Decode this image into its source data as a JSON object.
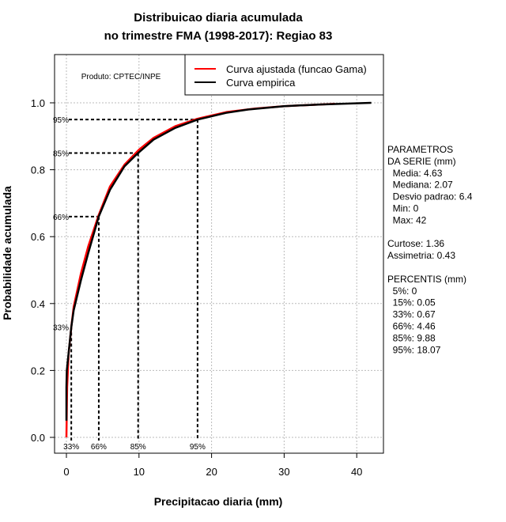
{
  "chart_data": {
    "type": "line",
    "title": [
      "Distribuicao diaria acumulada",
      "no trimestre FMA (1998-2017): Regiao 83"
    ],
    "xlabel": "Precipitacao diaria (mm)",
    "ylabel": "Probabilidade acumulada",
    "xlim": [
      -2,
      43
    ],
    "ylim": [
      -0.04,
      1.13
    ],
    "xticks": [
      0,
      10,
      20,
      30,
      40
    ],
    "yticks": [
      "0.0",
      "0.2",
      "0.4",
      "0.6",
      "0.8",
      "1.0"
    ],
    "grid": true,
    "legend_position": "top-right",
    "product_note": "Produto: CPTEC/INPE",
    "series": [
      {
        "name": "Curva ajustada (funcao Gama)",
        "color": "#ff0000",
        "x": [
          0,
          0.1,
          0.3,
          0.67,
          1,
          2,
          3,
          4.46,
          6,
          8,
          10,
          12,
          15,
          18,
          22,
          26,
          30,
          37
        ],
        "y": [
          0,
          0.15,
          0.25,
          0.33,
          0.39,
          0.49,
          0.57,
          0.665,
          0.75,
          0.815,
          0.86,
          0.895,
          0.93,
          0.952,
          0.972,
          0.983,
          0.99,
          0.997
        ]
      },
      {
        "name": "Curva empirica",
        "color": "#000000",
        "x": [
          0,
          0,
          0.05,
          0.67,
          1,
          2,
          3,
          4.46,
          6,
          8,
          9.88,
          12,
          15,
          18.07,
          22,
          25,
          30,
          35,
          42
        ],
        "y": [
          0.05,
          0.15,
          0.2,
          0.33,
          0.38,
          0.47,
          0.55,
          0.66,
          0.74,
          0.81,
          0.85,
          0.89,
          0.925,
          0.95,
          0.97,
          0.98,
          0.99,
          0.995,
          1.0
        ]
      }
    ],
    "percentiles": [
      {
        "label": "33%",
        "x": 0.67,
        "p": 0.33
      },
      {
        "label": "66%",
        "x": 4.46,
        "p": 0.66
      },
      {
        "label": "85%",
        "x": 9.88,
        "p": 0.85
      },
      {
        "label": "95%",
        "x": 18.07,
        "p": 0.95
      }
    ],
    "side_text": [
      "PARAMETROS",
      "DA SERIE (mm)",
      "  Media: 4.63",
      "  Mediana: 2.07",
      "  Desvio padrao: 6.4",
      "  Min: 0",
      "  Max: 42",
      "",
      "Curtose: 1.36",
      "Assimetria: 0.43",
      "",
      "PERCENTIS (mm)",
      "  5%: 0",
      "  15%: 0.05",
      "  33%: 0.67",
      "  66%: 4.46",
      "  85%: 9.88",
      "  95%: 18.07"
    ]
  }
}
